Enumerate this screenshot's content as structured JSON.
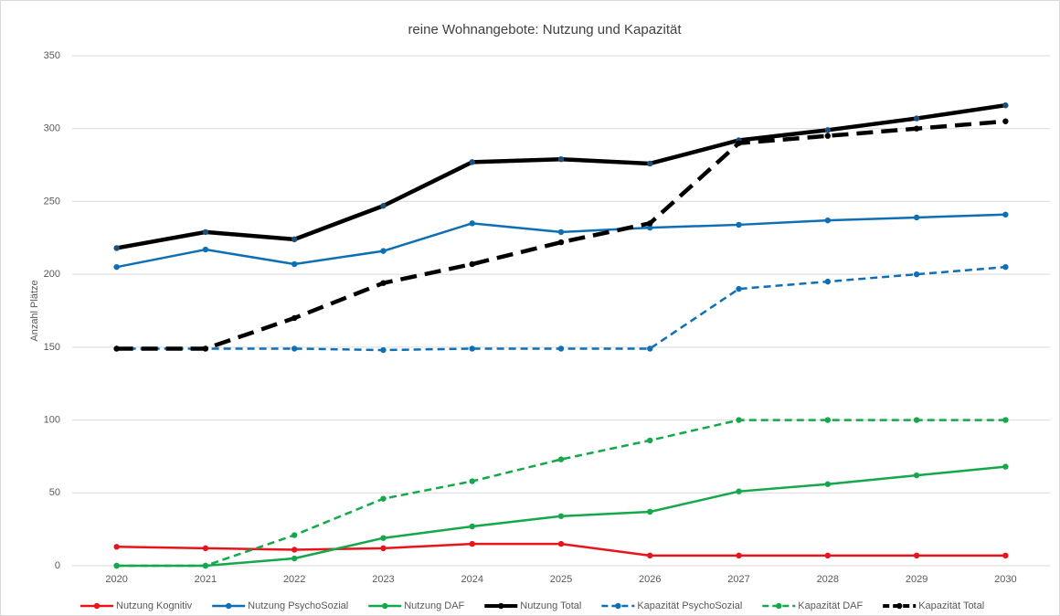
{
  "chart_data": {
    "type": "line",
    "title": "reine Wohnangebote: Nutzung und Kapazität",
    "y_label": "Anzahl Plätze",
    "categories": [
      "2020",
      "2021",
      "2022",
      "2023",
      "2024",
      "2025",
      "2026",
      "2027",
      "2028",
      "2029",
      "2030"
    ],
    "ylim": [
      0,
      350
    ],
    "yticks": [
      0,
      50,
      100,
      150,
      200,
      250,
      300,
      350
    ],
    "grid": true,
    "legend": "bottom",
    "series": [
      {
        "name": "Nutzung Kognitiv",
        "color": "#e8141c",
        "dash": false,
        "width": 2.5,
        "values": [
          13,
          12,
          11,
          12,
          15,
          15,
          7,
          7,
          7,
          7,
          7
        ]
      },
      {
        "name": "Nutzung PsychoSozial",
        "color": "#0f6fb5",
        "dash": false,
        "width": 2.5,
        "values": [
          205,
          217,
          207,
          216,
          235,
          229,
          232,
          234,
          237,
          239,
          241
        ]
      },
      {
        "name": "Nutzung DAF",
        "color": "#14a84a",
        "dash": false,
        "width": 2.5,
        "values": [
          0,
          0,
          5,
          19,
          27,
          34,
          37,
          51,
          56,
          62,
          68
        ]
      },
      {
        "name": "Nutzung Total",
        "color": "#000000",
        "dash": false,
        "width": 4.5,
        "values": [
          218,
          229,
          224,
          247,
          277,
          279,
          276,
          292,
          299,
          307,
          316
        ]
      },
      {
        "name": "Kapazität PsychoSozial",
        "color": "#0f6fb5",
        "dash": true,
        "width": 2.5,
        "values": [
          149,
          149,
          149,
          148,
          149,
          149,
          149,
          190,
          195,
          200,
          205
        ]
      },
      {
        "name": "Kapazität DAF",
        "color": "#14a84a",
        "dash": true,
        "width": 2.5,
        "values": [
          0,
          0,
          21,
          46,
          58,
          73,
          86,
          100,
          100,
          100,
          100
        ]
      },
      {
        "name": "Kapazität Total",
        "color": "#000000",
        "dash": true,
        "width": 4.5,
        "values": [
          149,
          149,
          170,
          194,
          207,
          222,
          235,
          290,
          295,
          300,
          305
        ]
      }
    ]
  }
}
